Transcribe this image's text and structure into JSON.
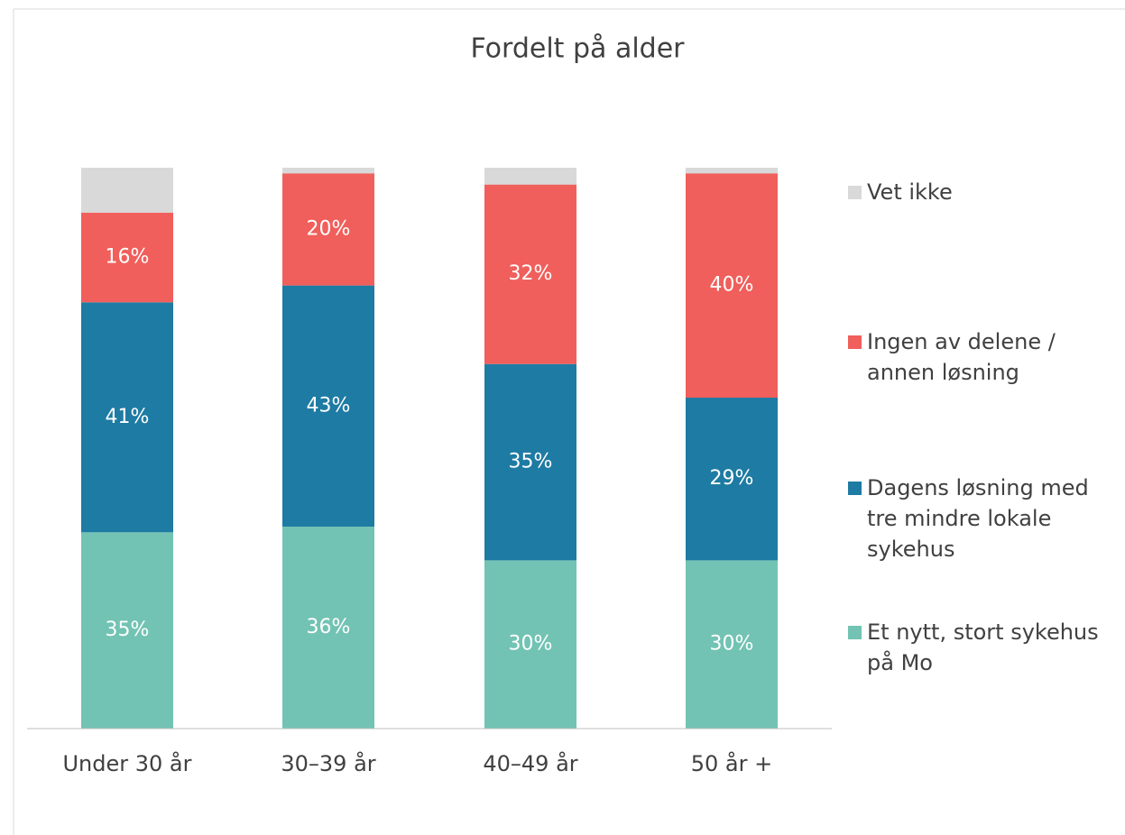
{
  "chart_data": {
    "type": "stacked-bar",
    "title": "Fordelt på alder",
    "categories": [
      "Under 30 år",
      "30–39 år",
      "40–49 år",
      "50 år +"
    ],
    "series": [
      {
        "name": "Et nytt, stort sykehus på Mo",
        "color": "#72c3b3",
        "values": [
          35,
          36,
          30,
          30
        ]
      },
      {
        "name": "Dagens løsning med tre mindre lokale sykehus",
        "color": "#1e7ba3",
        "values": [
          41,
          43,
          35,
          29
        ]
      },
      {
        "name": "Ingen av delene / annen løsning",
        "color": "#f05f5b",
        "values": [
          16,
          20,
          32,
          40
        ]
      },
      {
        "name": "Vet ikke",
        "color": "#d9d9d9",
        "values": [
          8,
          1,
          3,
          1
        ]
      }
    ],
    "value_labels": [
      [
        "35%",
        "36%",
        "30%",
        "30%"
      ],
      [
        "41%",
        "43%",
        "35%",
        "29%"
      ],
      [
        "16%",
        "20%",
        "32%",
        "40%"
      ],
      [
        null,
        null,
        null,
        null
      ]
    ],
    "ylim": [
      0,
      100
    ],
    "legend": "right"
  }
}
